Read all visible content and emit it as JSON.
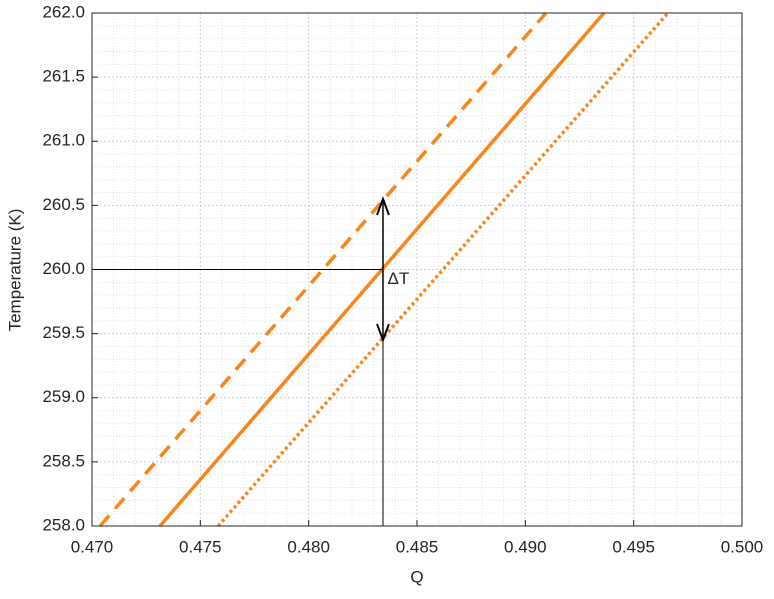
{
  "chart_data": {
    "type": "line",
    "xlabel": "Q",
    "ylabel": "Temperature (K)",
    "xlim": [
      0.47,
      0.5
    ],
    "ylim": [
      258,
      262
    ],
    "xticks": [
      {
        "value": 0.47,
        "label": "0.470"
      },
      {
        "value": 0.475,
        "label": "0.475"
      },
      {
        "value": 0.48,
        "label": "0.480"
      },
      {
        "value": 0.485,
        "label": "0.485"
      },
      {
        "value": 0.49,
        "label": "0.490"
      },
      {
        "value": 0.495,
        "label": "0.495"
      },
      {
        "value": 0.5,
        "label": "0.500"
      }
    ],
    "yticks": [
      {
        "value": 258,
        "label": "258.0"
      },
      {
        "value": 258.5,
        "label": "258.5"
      },
      {
        "value": 259,
        "label": "259.0"
      },
      {
        "value": 259.5,
        "label": "259.5"
      },
      {
        "value": 260,
        "label": "260.0"
      },
      {
        "value": 260.5,
        "label": "260.5"
      },
      {
        "value": 261,
        "label": "261.0"
      },
      {
        "value": 261.5,
        "label": "261.5"
      },
      {
        "value": 262,
        "label": "262.0"
      }
    ],
    "grid": true,
    "minor_grid": true,
    "series": [
      {
        "color": "#f7861c",
        "style": "dashed",
        "x": [
          0.47037,
          0.49095
        ],
        "values": [
          258,
          262
        ]
      },
      {
        "color": "#f7861c",
        "style": "solid",
        "x": [
          0.47314,
          0.49363
        ],
        "values": [
          258,
          262
        ]
      },
      {
        "color": "#f7861c",
        "style": "dotted",
        "x": [
          0.47582,
          0.49658
        ],
        "values": [
          258,
          262
        ]
      }
    ],
    "reference_point": {
      "x": 0.48343,
      "y": 260
    },
    "arrow": {
      "x": 0.48343,
      "y_from": 259.45,
      "y_to": 260.55
    },
    "annotation": {
      "text": "ΔT",
      "x": 0.4835,
      "y": 259.92
    }
  }
}
